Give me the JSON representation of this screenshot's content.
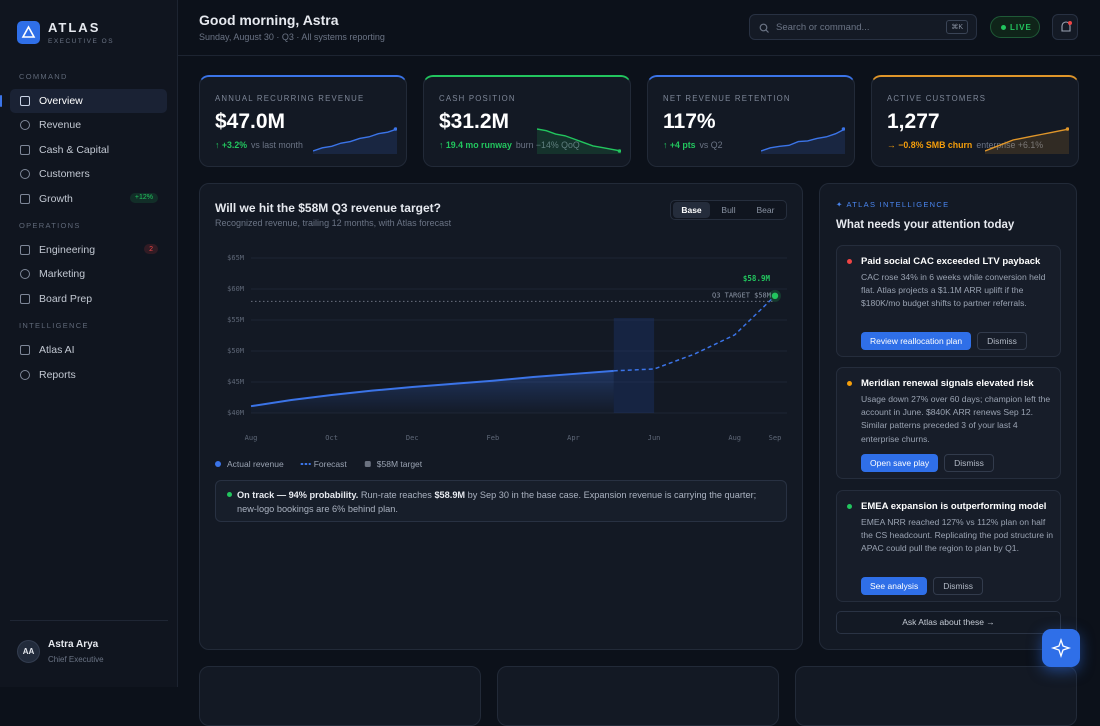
{
  "sidebar": {
    "brand": "ATLAS",
    "tagline": "EXECUTIVE OS",
    "sections": [
      {
        "label": "COMMAND",
        "items": [
          {
            "label": "Overview"
          },
          {
            "label": "Revenue"
          },
          {
            "label": "Cash & Capital"
          },
          {
            "label": "Customers"
          },
          {
            "label": "Growth",
            "badge": "+12%",
            "badge_color": "#22c55e"
          }
        ]
      },
      {
        "label": "OPERATIONS",
        "items": [
          {
            "label": "Engineering",
            "badge": "2",
            "badge_color": "#ef4444"
          },
          {
            "label": "Marketing"
          },
          {
            "label": "Board Prep"
          }
        ]
      },
      {
        "label": "INTELLIGENCE",
        "items": [
          {
            "label": "Atlas AI"
          },
          {
            "label": "Reports"
          }
        ]
      }
    ],
    "user": {
      "initials": "AA",
      "name": "Astra Arya",
      "role": "Chief Executive"
    }
  },
  "header": {
    "greeting": "Good morning, Astra",
    "subtitle": "Sunday, August 30 · Q3 · All systems reporting",
    "search_placeholder": "Search or command...",
    "shortcut": "⌘K",
    "status": "LIVE"
  },
  "kpis": [
    {
      "label": "ANNUAL RECURRING REVENUE",
      "value": "$47.0M",
      "delta": "↑ +3.2%",
      "note": "vs last month",
      "accent": "#3b74e8",
      "delta_color": "#22c55e",
      "spark": [
        2,
        3,
        3.5,
        4.5,
        5,
        6,
        6.5,
        7.5,
        8,
        9
      ]
    },
    {
      "label": "CASH POSITION",
      "value": "$31.2M",
      "delta": "↑ 19.4 mo runway",
      "note": "burn −14% QoQ",
      "accent": "#22c55e",
      "delta_color": "#22c55e",
      "spark": [
        9,
        8.5,
        7.5,
        7,
        6,
        5,
        4,
        3.5,
        3,
        2.5
      ]
    },
    {
      "label": "NET REVENUE RETENTION",
      "value": "117%",
      "delta": "↑ +4 pts",
      "note": "vs Q2",
      "accent": "#3b74e8",
      "delta_color": "#22c55e",
      "spark": [
        2,
        3,
        3.5,
        3.8,
        5,
        5.2,
        6,
        6.5,
        7.5,
        9
      ]
    },
    {
      "label": "ACTIVE CUSTOMERS",
      "value": "1,277",
      "delta": "→ −0.8% SMB churn",
      "note": "enterprise +6.1%",
      "accent": "#e0962a",
      "delta_color": "#f59e0b",
      "spark": [
        2,
        3,
        4,
        5,
        5.5,
        6,
        6.5,
        7,
        7.5,
        8
      ]
    }
  ],
  "chart_data": {
    "type": "line",
    "title": "Will we hit the $58M Q3 revenue target?",
    "subtitle": "Recognized revenue, trailing 12 months, with Atlas forecast",
    "tabs": [
      "Base",
      "Bull",
      "Bear"
    ],
    "categories": [
      "Aug",
      null,
      "Oct",
      null,
      "Dec",
      null,
      "Feb",
      null,
      "Apr",
      null,
      "Jun",
      null,
      "Aug",
      "Sep"
    ],
    "series": [
      {
        "name": "Actual revenue",
        "color": "#3b74e8",
        "values": [
          41.1,
          42.1,
          42.9,
          43.6,
          44.2,
          44.7,
          45.2,
          45.8,
          46.3,
          46.8,
          null,
          null,
          null,
          null
        ]
      },
      {
        "name": "Forecast",
        "color": "#3b74e8",
        "values": [
          null,
          null,
          null,
          null,
          null,
          null,
          null,
          null,
          null,
          46.8,
          47.1,
          49.5,
          52.6,
          58.9
        ]
      }
    ],
    "target": {
      "name": "$58M target",
      "value": 58,
      "label": "Q3 TARGET $58M",
      "color": "#6b7280"
    },
    "end_label": {
      "value": 58.9,
      "label": "$58.9M",
      "color": "#22c55e"
    },
    "ylim": [
      40,
      65
    ],
    "yticks": [
      {
        "value": 40,
        "label": "$40M"
      },
      {
        "value": 45,
        "label": "$45M"
      },
      {
        "value": 50,
        "label": "$50M"
      },
      {
        "value": 55,
        "label": "$55M"
      },
      {
        "value": 60,
        "label": "$60M"
      },
      {
        "value": 65,
        "label": "$65M"
      }
    ],
    "grid": true,
    "callout": {
      "lead": "On track — 94% probability.",
      "text1": " Run-rate reaches ",
      "figure": "$58.9M",
      "text2": " by Sep 30 in the base case. Expansion revenue is carrying the quarter; new-logo bookings are 6% behind plan."
    }
  },
  "insights": {
    "eyebrow": "✦ ATLAS INTELLIGENCE",
    "title": "What needs your attention today",
    "cards": [
      {
        "title": "Paid social CAC exceeded LTV payback",
        "body": "CAC rose 34% in 6 weeks while conversion held flat. Atlas projects a $1.1M ARR uplift if the $180K/mo budget shifts to partner referrals.",
        "action": "Review reallocation plan",
        "dismiss": "Dismiss",
        "color": "#ef4444"
      },
      {
        "title": "Meridian renewal signals elevated risk",
        "body": "Usage down 27% over 60 days; champion left the account in June. $840K ARR renews Sep 12. Similar patterns preceded 3 of your last 4 enterprise churns.",
        "action": "Open save play",
        "dismiss": "Dismiss",
        "color": "#f59e0b"
      },
      {
        "title": "EMEA expansion is outperforming model",
        "body": "EMEA NRR reached 127% vs 112% plan on half the CS headcount. Replicating the pod structure in APAC could pull the region to plan by Q1.",
        "action": "See analysis",
        "dismiss": "Dismiss",
        "color": "#22c55e"
      }
    ],
    "ask": "Ask Atlas about these →"
  }
}
